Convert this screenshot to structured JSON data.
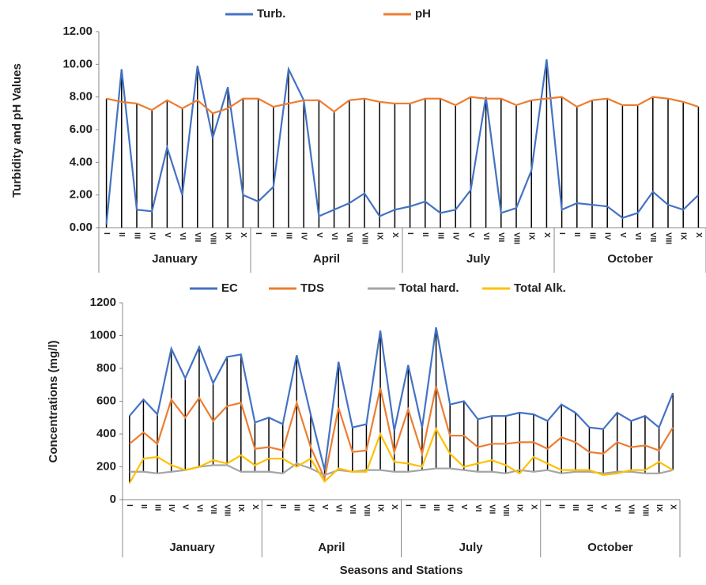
{
  "chart_data": [
    {
      "type": "line",
      "ylabel": "Turbidity and pH Values",
      "categories": [
        "I",
        "II",
        "III",
        "IV",
        "V",
        "VI",
        "VII",
        "VIII",
        "IX",
        "X",
        "I",
        "II",
        "III",
        "IV",
        "V",
        "VI",
        "VII",
        "VIII",
        "IX",
        "X",
        "I",
        "II",
        "III",
        "IV",
        "V",
        "VI",
        "VII",
        "VIII",
        "IX",
        "X",
        "I",
        "II",
        "III",
        "IV",
        "V",
        "VI",
        "VII",
        "VIII",
        "IX",
        "X"
      ],
      "groups": [
        "January",
        "April",
        "July",
        "October"
      ],
      "series": [
        {
          "name": "Turb.",
          "color": "#4472c4",
          "values": [
            0.2,
            9.7,
            1.1,
            1.0,
            4.9,
            2.0,
            9.9,
            5.5,
            8.6,
            2.0,
            1.6,
            2.5,
            9.7,
            7.8,
            0.7,
            1.1,
            1.5,
            2.1,
            0.7,
            1.1,
            1.3,
            1.6,
            0.9,
            1.1,
            2.3,
            8.0,
            0.9,
            1.2,
            3.5,
            10.3,
            1.1,
            1.5,
            1.4,
            1.3,
            0.6,
            0.9,
            2.2,
            1.4,
            1.1,
            2.0
          ]
        },
        {
          "name": "pH",
          "color": "#ed7d31",
          "values": [
            7.9,
            7.7,
            7.6,
            7.2,
            7.8,
            7.3,
            7.8,
            7.0,
            7.3,
            7.9,
            7.9,
            7.4,
            7.6,
            7.8,
            7.8,
            7.1,
            7.8,
            7.9,
            7.7,
            7.6,
            7.6,
            7.9,
            7.9,
            7.5,
            8.0,
            7.9,
            7.9,
            7.5,
            7.8,
            7.9,
            8.0,
            7.4,
            7.8,
            7.9,
            7.5,
            7.5,
            8.0,
            7.9,
            7.7,
            7.4
          ]
        }
      ],
      "ylim": [
        0,
        12
      ],
      "yticks": [
        {
          "value": 0,
          "label": "0.00"
        },
        {
          "value": 2,
          "label": "2.00"
        },
        {
          "value": 4,
          "label": "4.00"
        },
        {
          "value": 6,
          "label": "6.00"
        },
        {
          "value": 8,
          "label": "8.00"
        },
        {
          "value": 10,
          "label": "10.00"
        },
        {
          "value": 12,
          "label": "12.00"
        }
      ]
    },
    {
      "type": "line",
      "ylabel": "Concentrations (mg/l)",
      "xlabel": "Seasons and Stations",
      "categories": [
        "I",
        "II",
        "III",
        "IV",
        "V",
        "VI",
        "VII",
        "VIII",
        "IX",
        "X",
        "I",
        "II",
        "III",
        "IV",
        "V",
        "VI",
        "VII",
        "VIII",
        "IX",
        "X",
        "I",
        "II",
        "III",
        "IV",
        "V",
        "VI",
        "VII",
        "VIII",
        "IX",
        "X",
        "I",
        "II",
        "III",
        "IV",
        "V",
        "VI",
        "VII",
        "VIII",
        "IX",
        "X"
      ],
      "groups": [
        "January",
        "April",
        "July",
        "October"
      ],
      "series": [
        {
          "name": "EC",
          "color": "#4472c4",
          "values": [
            510,
            610,
            520,
            920,
            740,
            930,
            710,
            870,
            885,
            470,
            500,
            460,
            880,
            520,
            180,
            840,
            440,
            460,
            1030,
            420,
            820,
            440,
            1050,
            580,
            600,
            490,
            510,
            510,
            530,
            520,
            480,
            580,
            530,
            440,
            430,
            530,
            480,
            510,
            440,
            650
          ]
        },
        {
          "name": "TDS",
          "color": "#ed7d31",
          "values": [
            340,
            410,
            340,
            610,
            500,
            620,
            480,
            570,
            590,
            310,
            320,
            300,
            590,
            320,
            130,
            560,
            290,
            300,
            680,
            290,
            550,
            280,
            690,
            390,
            390,
            320,
            340,
            340,
            350,
            350,
            310,
            380,
            350,
            290,
            280,
            350,
            320,
            330,
            300,
            440
          ]
        },
        {
          "name": "Total hard.",
          "color": "#a5a5a5",
          "values": [
            170,
            170,
            160,
            170,
            180,
            200,
            210,
            210,
            170,
            170,
            170,
            160,
            220,
            190,
            150,
            180,
            170,
            180,
            180,
            170,
            170,
            180,
            190,
            190,
            180,
            170,
            170,
            160,
            180,
            170,
            180,
            160,
            170,
            170,
            160,
            170,
            170,
            160,
            160,
            180
          ]
        },
        {
          "name": "Total Alk.",
          "color": "#ffc000",
          "values": [
            100,
            250,
            260,
            210,
            180,
            200,
            240,
            220,
            270,
            210,
            250,
            250,
            200,
            250,
            110,
            190,
            170,
            170,
            400,
            230,
            220,
            200,
            430,
            280,
            200,
            220,
            240,
            210,
            160,
            260,
            220,
            180,
            180,
            180,
            150,
            160,
            180,
            180,
            230,
            180
          ]
        }
      ],
      "ylim": [
        0,
        1200
      ],
      "yticks": [
        0,
        200,
        400,
        600,
        800,
        1000,
        1200
      ]
    }
  ]
}
